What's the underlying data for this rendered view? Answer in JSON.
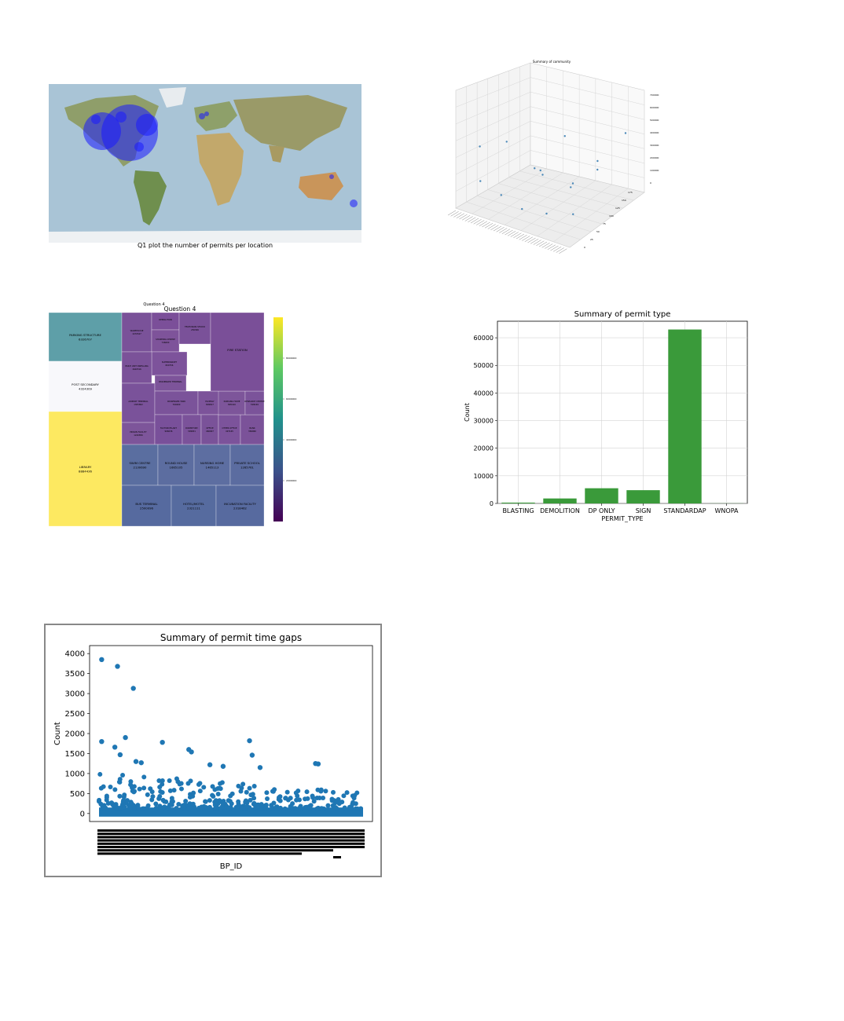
{
  "colors": {
    "ocean": "#a9c4d6",
    "bubble": "#1a1aff",
    "bar": "#3a9a3a",
    "scatter": "#1f77b4",
    "scatter3d": "#4a88b8",
    "gap_border": "#888888"
  },
  "map_panel": {
    "caption": "Q1 plot the number of permits per location"
  },
  "panel_3d": {
    "title": "Summary of community",
    "z_ticks": [
      "0",
      "100000",
      "200000",
      "300000",
      "400000",
      "500000",
      "600000",
      "700000"
    ],
    "y_ticks": [
      "0",
      "25",
      "50",
      "75",
      "100",
      "125",
      "150",
      "175"
    ],
    "points": [
      {
        "x": 0.08,
        "y": 0.2,
        "z": 0.55
      },
      {
        "x": 0.15,
        "y": 0.1,
        "z": 0.28
      },
      {
        "x": 0.25,
        "y": 0.3,
        "z": 0.62
      },
      {
        "x": 0.3,
        "y": 0.15,
        "z": 0.18
      },
      {
        "x": 0.35,
        "y": 0.6,
        "z": 0.25
      },
      {
        "x": 0.45,
        "y": 0.2,
        "z": 0.08
      },
      {
        "x": 0.5,
        "y": 0.4,
        "z": 0.35
      },
      {
        "x": 0.55,
        "y": 0.7,
        "z": 0.12
      },
      {
        "x": 0.6,
        "y": 0.3,
        "z": 0.05
      },
      {
        "x": 0.7,
        "y": 0.5,
        "z": 0.3
      },
      {
        "x": 0.72,
        "y": 0.8,
        "z": 0.4
      },
      {
        "x": 0.8,
        "y": 0.35,
        "z": 0.1
      },
      {
        "x": 0.85,
        "y": 0.6,
        "z": 0.45
      },
      {
        "x": 0.9,
        "y": 0.9,
        "z": 0.7
      },
      {
        "x": 0.2,
        "y": 0.75,
        "z": 0.15
      },
      {
        "x": 0.4,
        "y": 0.85,
        "z": 0.5
      }
    ]
  },
  "treemap": {
    "small_title": "Question 4",
    "title": "Question 4",
    "colorbar_ticks": [
      "2000000",
      "4000000",
      "6000000",
      "8000000"
    ],
    "tiles": [
      {
        "label": "PARKING STRUCTURE",
        "value": "6326707"
      },
      {
        "label": "POST SECONDARY",
        "value": "4324309"
      },
      {
        "label": "LIBRARY",
        "value": "8884436"
      },
      {
        "label": "WAREHOUSE",
        "value": "1470547"
      },
      {
        "label": "DEMOLITION",
        "value": ""
      },
      {
        "label": "SHOPPING CENTRE",
        "value": "746600"
      },
      {
        "label": "TELEVISION STUDIO",
        "value": "250306"
      },
      {
        "label": "SUPERMARKET",
        "value": "800756"
      },
      {
        "label": "MULTI UNIT DWELLING",
        "value": "1640516"
      },
      {
        "label": "AIRPORT TERMINAL",
        "value": "1305802"
      },
      {
        "label": "PASSENGER TERMINAL",
        "value": ""
      },
      {
        "label": "PASSENGER TANK",
        "value": "760400"
      },
      {
        "label": "PRISON FACILITY",
        "value": "1240856"
      },
      {
        "label": "FACTORY/PLANT",
        "value": "966036"
      },
      {
        "label": "ELDERLY",
        "value": "809817"
      },
      {
        "label": "DORMITORY",
        "value": "309651"
      },
      {
        "label": "OFFICE",
        "value": "460907"
      },
      {
        "label": "OTHER OFFICE",
        "value": "497165"
      },
      {
        "label": "BANK",
        "value": "369960"
      },
      {
        "label": "NURSING HOME",
        "value": "895410"
      },
      {
        "label": "RESEARCH CENTRE",
        "value": "509169"
      },
      {
        "label": "FIRE STATION",
        "value": ""
      },
      {
        "label": "SWIM CENTRE",
        "value": "2130690"
      },
      {
        "label": "ROUND HOUSE",
        "value": "1665105"
      },
      {
        "label": "NURSING HOME",
        "value": "1465113"
      },
      {
        "label": "PRIVATE SCHOOL",
        "value": "1265761"
      },
      {
        "label": "BUS TERMINAL",
        "value": "2500096"
      },
      {
        "label": "HOTEL/MOTEL",
        "value": "2321111"
      },
      {
        "label": "INCUBATION FACILITY",
        "value": "2318462"
      }
    ]
  },
  "chart_data": [
    {
      "type": "bar",
      "title": "Summary of permit type",
      "xlabel": "PERMIT_TYPE",
      "ylabel": "Count",
      "categories": [
        "BLASTING",
        "DEMOLITION",
        "DP ONLY",
        "SIGN",
        "STANDARDAP",
        "WNOPA"
      ],
      "values": [
        300,
        1800,
        5500,
        4800,
        63000,
        50
      ],
      "ylim": [
        0,
        66000
      ],
      "yticks": [
        0,
        10000,
        20000,
        30000,
        40000,
        50000,
        60000
      ],
      "grid": true
    },
    {
      "type": "scatter",
      "title": "Summary of permit time gaps",
      "xlabel": "BP_ID",
      "ylabel": "Count",
      "ylim": [
        -200,
        4200
      ],
      "yticks": [
        0,
        500,
        1000,
        1500,
        2000,
        2500,
        3000,
        3500,
        4000
      ],
      "highlights": [
        {
          "x": 0.01,
          "y": 3850
        },
        {
          "x": 0.07,
          "y": 3680
        },
        {
          "x": 0.13,
          "y": 3130
        },
        {
          "x": 0.01,
          "y": 1800
        },
        {
          "x": 0.06,
          "y": 1660
        },
        {
          "x": 0.1,
          "y": 1900
        },
        {
          "x": 0.08,
          "y": 1470
        },
        {
          "x": 0.24,
          "y": 1780
        },
        {
          "x": 0.34,
          "y": 1600
        },
        {
          "x": 0.35,
          "y": 1540
        },
        {
          "x": 0.57,
          "y": 1820
        },
        {
          "x": 0.58,
          "y": 1460
        },
        {
          "x": 0.42,
          "y": 1220
        },
        {
          "x": 0.47,
          "y": 1180
        },
        {
          "x": 0.82,
          "y": 1250
        },
        {
          "x": 0.83,
          "y": 1240
        },
        {
          "x": 0.14,
          "y": 1300
        },
        {
          "x": 0.16,
          "y": 1270
        },
        {
          "x": 0.61,
          "y": 1150
        }
      ]
    }
  ]
}
